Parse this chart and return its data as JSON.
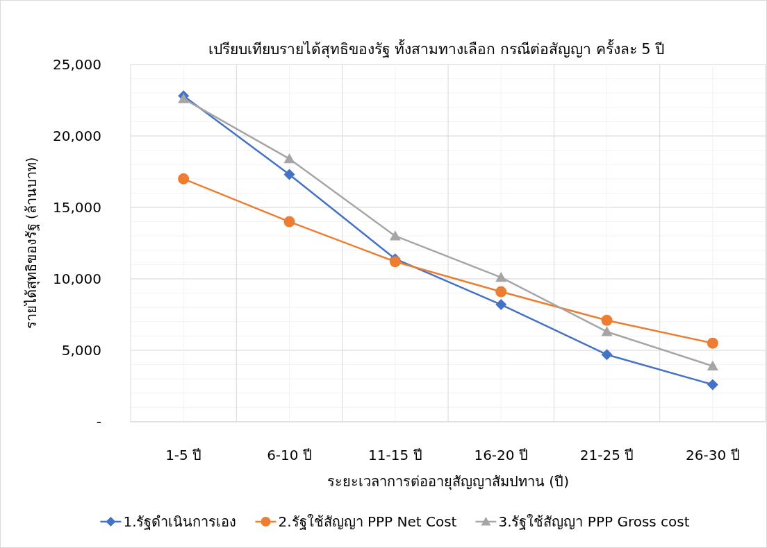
{
  "chart_data": {
    "type": "line",
    "title": "เปรียบเทียบรายได้สุทธิของรัฐ ทั้งสามทางเลือก กรณีต่อสัญญา ครั้งละ 5 ปี",
    "xlabel": "ระยะเวลาการต่ออายุสัญญาสัมปทาน (ปี)",
    "ylabel": "รายได้สุทธิของรัฐ (ล้านบาท)",
    "categories": [
      "1-5 ปี",
      "6-10 ปี",
      "11-15 ปี",
      "16-20 ปี",
      "21-25 ปี",
      "26-30 ปี"
    ],
    "series": [
      {
        "name": "1.รัฐดำเนินการเอง",
        "color": "#4472c4",
        "marker": "diamond",
        "values": [
          22800,
          17300,
          11400,
          8200,
          4700,
          2600
        ]
      },
      {
        "name": "2.รัฐใช้สัญญา PPP Net Cost",
        "color": "#ed7d31",
        "marker": "circle",
        "values": [
          17000,
          14000,
          11200,
          9100,
          7100,
          5500
        ]
      },
      {
        "name": "3.รัฐใช้สัญญา PPP Gross cost",
        "color": "#a5a5a5",
        "marker": "triangle",
        "values": [
          22600,
          18400,
          13000,
          10100,
          6300,
          3900
        ]
      }
    ],
    "ylim": [
      0,
      25000
    ],
    "yticks": [
      {
        "value": 0,
        "label": "-"
      },
      {
        "value": 5000,
        "label": "5,000"
      },
      {
        "value": 10000,
        "label": "10,000"
      },
      {
        "value": 15000,
        "label": "15,000"
      },
      {
        "value": 20000,
        "label": "20,000"
      },
      {
        "value": 25000,
        "label": "25,000"
      }
    ],
    "grid": true,
    "legend": "bottom"
  }
}
